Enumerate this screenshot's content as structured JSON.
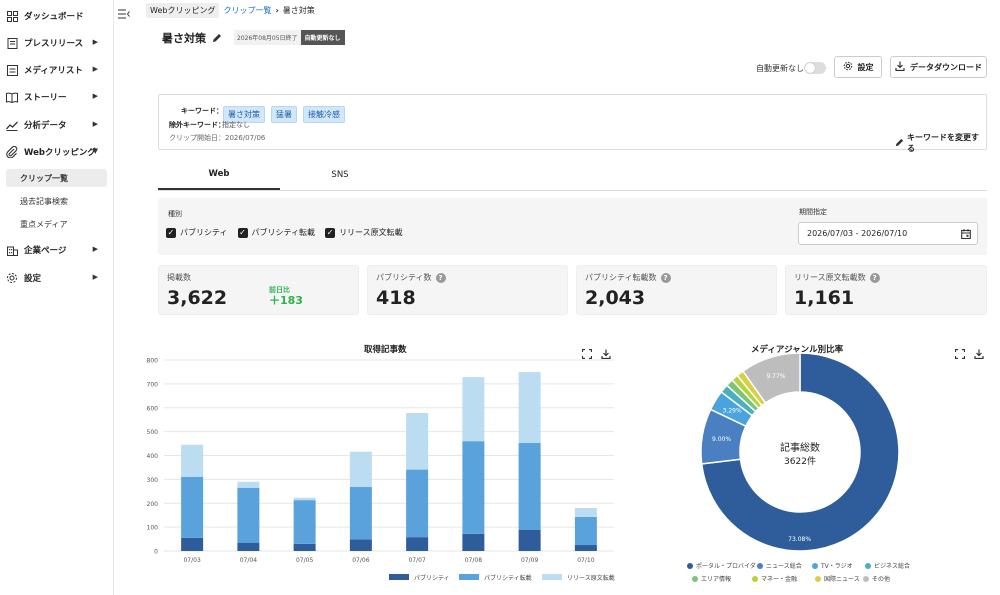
{
  "sidebar": {
    "items": [
      {
        "label": "ダッシュボード",
        "icon": "grid-icon"
      },
      {
        "label": "プレスリリース",
        "icon": "document-icon"
      },
      {
        "label": "メディアリスト",
        "icon": "list-icon"
      },
      {
        "label": "ストーリー",
        "icon": "book-icon"
      },
      {
        "label": "分析データ",
        "icon": "chart-line-icon"
      },
      {
        "label": "Webクリッピング",
        "icon": "paperclip-icon"
      },
      {
        "label": "企業ページ",
        "icon": "building-icon"
      },
      {
        "label": "設定",
        "icon": "gear-icon"
      }
    ],
    "sub_items": [
      "クリップ一覧",
      "過去記事検索",
      "重点メディア"
    ]
  },
  "breadcrumb": {
    "root": "Webクリッピング",
    "parent": "クリップ一覧",
    "current": "暑さ対策"
  },
  "header": {
    "title": "暑さ対策",
    "end_date": "2026年08月05日終了",
    "badge": "自動更新なし"
  },
  "toolbar": {
    "auto_update_label": "自動更新なし",
    "settings_label": "設定",
    "download_label": "データダウンロード"
  },
  "keywords": {
    "keyword_label": "キーワード：",
    "tags": [
      "暑さ対策",
      "猛暑",
      "接触冷感"
    ],
    "exclude_label": "除外キーワード：",
    "exclude_value": "指定なし",
    "start_date": "クリップ開始日：2026/07/06",
    "change_label": "キーワードを変更する"
  },
  "tabs": [
    "Web",
    "SNS"
  ],
  "filters": {
    "type_label": "種別",
    "options": [
      "パブリシティ",
      "パブリシティ転載",
      "リリース原文転載"
    ],
    "period_label": "期間指定",
    "period_value": "2026/07/03 - 2026/07/10"
  },
  "stats": [
    {
      "label": "掲載数",
      "value": "3,622",
      "diff_label": "前日比",
      "diff_value": "＋183"
    },
    {
      "label": "パブリシティ数",
      "value": "418"
    },
    {
      "label": "パブリシティ転載数",
      "value": "2,043"
    },
    {
      "label": "リリース原文転載数",
      "value": "1,161"
    }
  ],
  "colors": {
    "dark": "#2f5d9b",
    "mid": "#5aa2dc",
    "light": "#bcdcf2",
    "accent_green": "#2bb24c"
  },
  "chart_data": [
    {
      "type": "bar",
      "stacked": true,
      "title": "取得記事数",
      "categories": [
        "07/03",
        "07/04",
        "07/05",
        "07/06",
        "07/07",
        "07/08",
        "07/09",
        "07/10"
      ],
      "series": [
        {
          "name": "パブリシティ",
          "values": [
            55,
            35,
            30,
            48,
            58,
            72,
            88,
            25
          ]
        },
        {
          "name": "パブリシティ転載",
          "values": [
            255,
            230,
            183,
            220,
            283,
            388,
            365,
            118
          ]
        },
        {
          "name": "リリース原文転載",
          "values": [
            135,
            25,
            10,
            148,
            237,
            268,
            297,
            37
          ]
        }
      ],
      "ylim": [
        0,
        800
      ],
      "yticks": [
        0,
        100,
        200,
        300,
        400,
        500,
        600,
        700,
        800
      ],
      "grid": true,
      "legend": "bottom"
    },
    {
      "type": "pie",
      "donut": true,
      "title": "メディアジャンル別比率",
      "center_title": "記事総数",
      "center_value": "3622件",
      "slices": [
        {
          "name": "ポータル・プロバイダ",
          "value": 73.08,
          "label": "73.08%",
          "color": "#2f5d9b"
        },
        {
          "name": "ニュース総合",
          "value": 9.0,
          "label": "9.00%",
          "color": "#4a7fc1"
        },
        {
          "name": "TV・ラジオ",
          "value": 3.29,
          "label": "3.29%",
          "color": "#4aa3df"
        },
        {
          "name": "ビジネス総合",
          "value": 1.4,
          "label": "",
          "color": "#4ab0bd"
        },
        {
          "name": "エリア情報",
          "value": 1.2,
          "label": "",
          "color": "#7cc576"
        },
        {
          "name": "マネー・金融",
          "value": 1.1,
          "label": "",
          "color": "#b5d33d"
        },
        {
          "name": "国際ニュース",
          "value": 1.16,
          "label": "",
          "color": "#d9cf47"
        },
        {
          "name": "その他",
          "value": 9.77,
          "label": "9.77%",
          "color": "#bdbdbd"
        }
      ],
      "legend": "bottom"
    }
  ]
}
